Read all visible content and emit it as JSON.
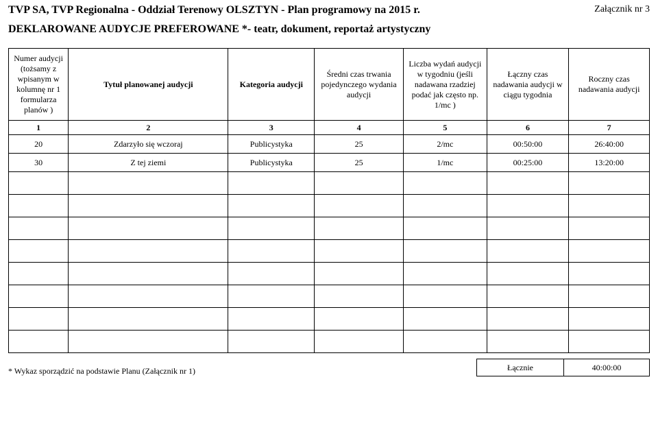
{
  "header": {
    "title": "TVP SA, TVP Regionalna - Oddział Terenowy OLSZTYN - Plan programowy na 2015 r.",
    "attachment": "Załącznik nr 3",
    "subtitle": "DEKLAROWANE AUDYCJE PREFEROWANE *- teatr, dokument, reportaż artystyczny"
  },
  "table": {
    "columns": [
      "Numer audycji (tożsamy z wpisanym w kolumnę nr 1 formularza planów )",
      "Tytuł planowanej audycji",
      "Kategoria audycji",
      "Średni czas trwania pojedynczego wydania audycji",
      "Liczba wydań audycji w tygodniu (jeśli nadawana rzadziej podać jak często np. 1/mc )",
      "Łączny czas nadawania audycji w ciągu tygodnia",
      "Roczny czas nadawania audycji"
    ],
    "numrow": [
      "1",
      "2",
      "3",
      "4",
      "5",
      "6",
      "7"
    ],
    "rows": [
      [
        "20",
        "Zdarzyło się wczoraj",
        "Publicystyka",
        "25",
        "2/mc",
        "00:50:00",
        "26:40:00"
      ],
      [
        "30",
        "Z tej ziemi",
        "Publicystyka",
        "25",
        "1/mc",
        "00:25:00",
        "13:20:00"
      ]
    ]
  },
  "footer": {
    "note": "* Wykaz sporządzić na podstawie Planu (Załącznik nr 1)",
    "total_label": "Łącznie",
    "total_value": "40:00:00"
  }
}
